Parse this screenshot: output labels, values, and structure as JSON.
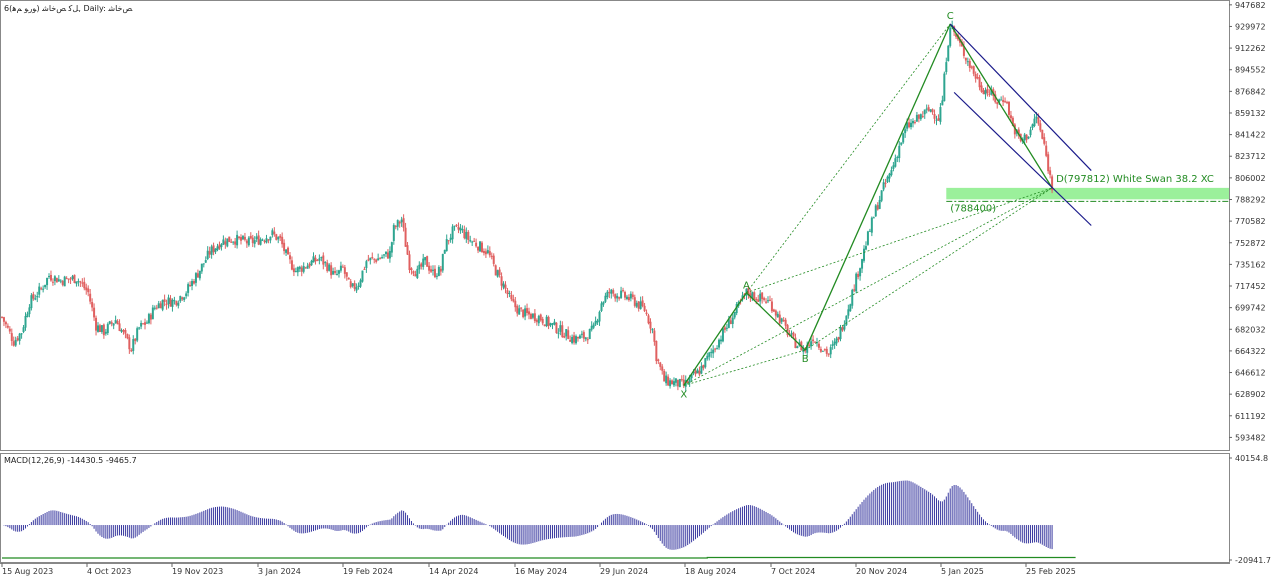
{
  "header": {
    "title": "6(ﻮرﻮ ﻢﻫ) ﻞﮐ ﺺﺧﺎﺷ, Daily: ﺺﺧﺎﺷ",
    "macd_label": "MACD(12,26,9) -14430.5 -9465.7"
  },
  "colors": {
    "up": "#2ea590",
    "down": "#e06060",
    "pattern": "#228b22",
    "channel": "#1a1a8a",
    "zone": "#90ee90",
    "macd": "#3a3aa0",
    "signal": "#228b22",
    "grid_border": "#888888"
  },
  "chart_data": [
    {
      "type": "candlestick",
      "y_ticks": [
        "947682",
        "929972",
        "912262",
        "894552",
        "876842",
        "859132",
        "841422",
        "823712",
        "806002",
        "788292",
        "770582",
        "752872",
        "735162",
        "717452",
        "699742",
        "682032",
        "664322",
        "646612",
        "628902",
        "611192",
        "593482"
      ],
      "ylim": [
        584000,
        950000
      ],
      "x_ticks": [
        "15 Aug 2023",
        "4 Oct 2023",
        "19 Nov 2023",
        "3 Jan 2024",
        "19 Feb 2024",
        "14 Apr 2024",
        "16 May 2024",
        "29 Jun 2024",
        "18 Aug 2024",
        "7 Oct 2024",
        "20 Nov 2024",
        "5 Jan 2025",
        "25 Feb 2025"
      ],
      "candles_count": 350,
      "close_path": [
        [
          0,
          692000
        ],
        [
          6,
          672000
        ],
        [
          10,
          680000
        ],
        [
          14,
          704000
        ],
        [
          20,
          715000
        ],
        [
          24,
          726000
        ],
        [
          30,
          722000
        ],
        [
          38,
          724000
        ],
        [
          44,
          712000
        ],
        [
          48,
          685000
        ],
        [
          52,
          680000
        ],
        [
          58,
          690000
        ],
        [
          62,
          678000
        ],
        [
          66,
          666000
        ],
        [
          70,
          683000
        ],
        [
          74,
          688000
        ],
        [
          78,
          700000
        ],
        [
          82,
          705000
        ],
        [
          88,
          705000
        ],
        [
          94,
          713000
        ],
        [
          100,
          728000
        ],
        [
          106,
          745000
        ],
        [
          112,
          754000
        ],
        [
          118,
          756000
        ],
        [
          126,
          753000
        ],
        [
          132,
          756000
        ],
        [
          138,
          760000
        ],
        [
          142,
          755000
        ],
        [
          146,
          739000
        ],
        [
          150,
          730000
        ],
        [
          156,
          735000
        ],
        [
          162,
          740000
        ],
        [
          166,
          734000
        ],
        [
          170,
          725000
        ],
        [
          174,
          732000
        ],
        [
          178,
          714000
        ],
        [
          182,
          720000
        ],
        [
          186,
          738000
        ],
        [
          192,
          740000
        ],
        [
          198,
          744000
        ],
        [
          200,
          764000
        ],
        [
          204,
          772000
        ],
        [
          206,
          752000
        ],
        [
          208,
          735000
        ],
        [
          212,
          728000
        ],
        [
          216,
          738000
        ],
        [
          220,
          728000
        ],
        [
          224,
          730000
        ],
        [
          226,
          750000
        ],
        [
          230,
          762000
        ],
        [
          234,
          764000
        ],
        [
          238,
          756000
        ],
        [
          242,
          752000
        ],
        [
          248,
          745000
        ],
        [
          252,
          730000
        ],
        [
          256,
          718000
        ],
        [
          260,
          704000
        ],
        [
          264,
          697000
        ],
        [
          268,
          694000
        ],
        [
          274,
          692000
        ],
        [
          280,
          686000
        ],
        [
          286,
          680000
        ],
        [
          292,
          674000
        ],
        [
          298,
          676000
        ],
        [
          302,
          682000
        ],
        [
          306,
          704000
        ],
        [
          310,
          712000
        ],
        [
          316,
          710000
        ],
        [
          322,
          706000
        ],
        [
          328,
          698000
        ],
        [
          332,
          682000
        ],
        [
          334,
          660000
        ],
        [
          338,
          640000
        ],
        [
          344,
          638000
        ],
        [
          348,
          636000
        ]
      ],
      "pattern": {
        "name": "White Swan 38.2 XC",
        "points": [
          {
            "label": "X",
            "date_index": 348,
            "value": 636000
          },
          {
            "label": "A",
            "date_index": 380,
            "value": 712000
          },
          {
            "label": "B",
            "date_index": 410,
            "value": 665000
          },
          {
            "label": "C",
            "date_index": 484,
            "value": 932000
          },
          {
            "label": "D",
            "date_index": 536,
            "value": 797812
          }
        ],
        "d_label": "D(797812) White Swan 38.2 XC",
        "zone_label": "(788400)",
        "zone_low": 788400,
        "zone_high": 797812
      },
      "legend": "none",
      "grid": false
    },
    {
      "type": "bar",
      "name": "MACD(12,26,9)",
      "y_ticks": [
        "40154.8",
        "-20941.7"
      ],
      "ylim": [
        -20941.7,
        40154.8
      ],
      "main_value": -14430.5,
      "signal_value": -9465.7
    }
  ]
}
